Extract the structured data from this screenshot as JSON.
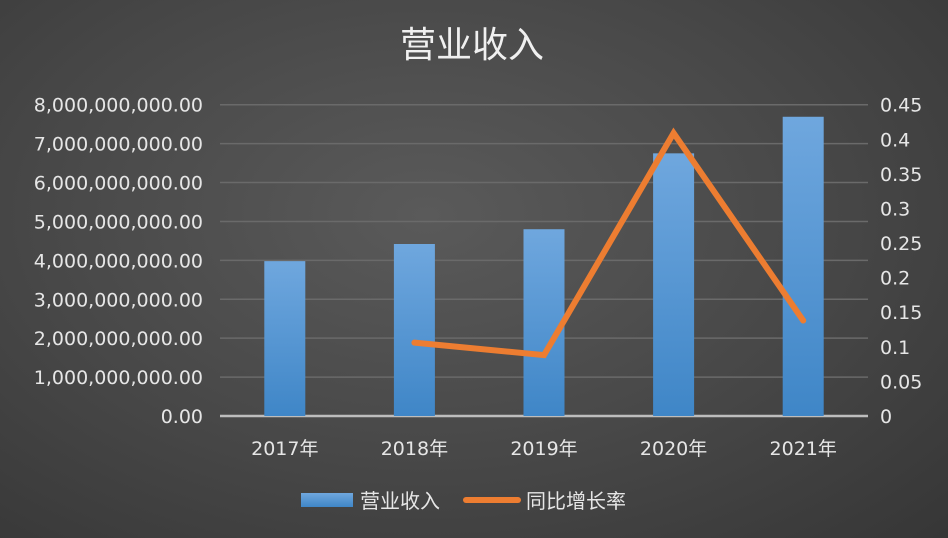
{
  "chart_data": {
    "type": "bar+line",
    "title": "营业收入",
    "categories": [
      "2017年",
      "2018年",
      "2019年",
      "2020年",
      "2021年"
    ],
    "series": [
      {
        "name": "营业收入",
        "type": "bar",
        "axis": "left",
        "color": "#5b9bd5",
        "values": [
          3980000000,
          4420000000,
          4800000000,
          6750000000,
          7690000000
        ]
      },
      {
        "name": "同比增长率",
        "type": "line",
        "axis": "right",
        "color": "#ed7d31",
        "values": [
          null,
          0.106,
          0.088,
          0.409,
          0.138
        ]
      }
    ],
    "y_left": {
      "ylim": [
        0,
        8000000000
      ],
      "ticks": [
        "0.00",
        "1,000,000,000.00",
        "2,000,000,000.00",
        "3,000,000,000.00",
        "4,000,000,000.00",
        "5,000,000,000.00",
        "6,000,000,000.00",
        "7,000,000,000.00",
        "8,000,000,000.00"
      ]
    },
    "y_right": {
      "ylim": [
        0,
        0.45
      ],
      "ticks": [
        "0",
        "0.05",
        "0.1",
        "0.15",
        "0.2",
        "0.25",
        "0.3",
        "0.35",
        "0.4",
        "0.45"
      ]
    },
    "grid": true,
    "legend": "bottom"
  }
}
